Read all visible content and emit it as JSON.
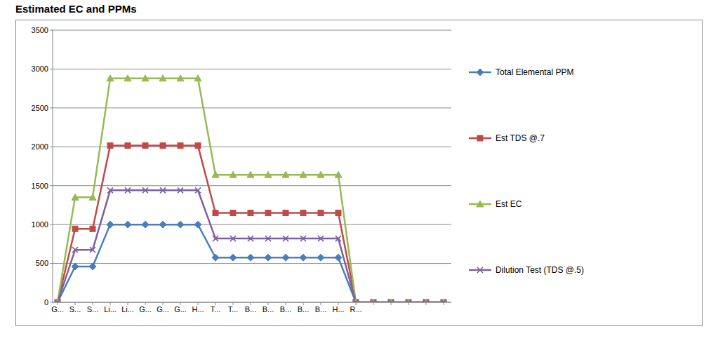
{
  "chart_data": {
    "type": "line",
    "title": "Estimated EC and PPMs",
    "categories": [
      "G...",
      "S...",
      "S...",
      "Li...",
      "Li...",
      "G...",
      "G...",
      "G...",
      "H...",
      "T...",
      "T...",
      "B...",
      "B...",
      "B...",
      "B...",
      "B...",
      "H...",
      "R...",
      null,
      null,
      null,
      null,
      null
    ],
    "series": [
      {
        "name": "Total Elemental PPM",
        "color": "#4a7ebb",
        "marker": "diamond",
        "values": [
          0,
          460,
          460,
          1000,
          1000,
          1000,
          1000,
          1000,
          1000,
          575,
          575,
          575,
          575,
          575,
          575,
          575,
          575,
          0,
          0,
          0,
          0,
          0,
          0
        ]
      },
      {
        "name": "Est TDS @.7",
        "color": "#be4b48",
        "marker": "square",
        "values": [
          0,
          945,
          945,
          2015,
          2015,
          2015,
          2015,
          2015,
          2015,
          1150,
          1150,
          1150,
          1150,
          1150,
          1150,
          1150,
          1150,
          0,
          0,
          0,
          0,
          0,
          0
        ]
      },
      {
        "name": "Est EC",
        "color": "#98b954",
        "marker": "triangle",
        "values": [
          0,
          1350,
          1350,
          2880,
          2880,
          2880,
          2880,
          2880,
          2880,
          1640,
          1640,
          1640,
          1640,
          1640,
          1640,
          1640,
          1640,
          0,
          0,
          0,
          0,
          0,
          0
        ]
      },
      {
        "name": "Dilution Test (TDS @.5)",
        "color": "#7d60a0",
        "marker": "x",
        "values": [
          0,
          675,
          675,
          1440,
          1440,
          1440,
          1440,
          1440,
          1440,
          820,
          820,
          820,
          820,
          820,
          820,
          820,
          820,
          0,
          0,
          0,
          0,
          0,
          0
        ]
      }
    ],
    "ylim": [
      0,
      3500
    ],
    "yticks": [
      0,
      500,
      1000,
      1500,
      2000,
      2500,
      3000,
      3500
    ],
    "grid": true,
    "legend": "right"
  }
}
